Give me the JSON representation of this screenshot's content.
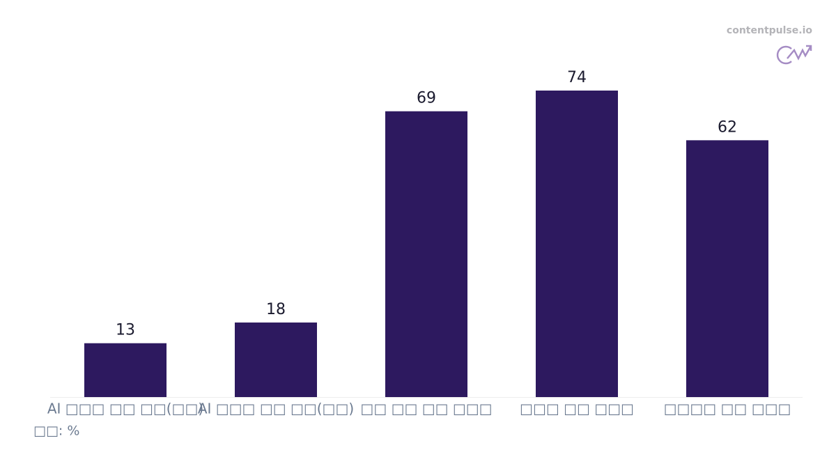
{
  "chart_data": {
    "type": "bar",
    "categories": [
      "AI □□□ □□ □□(□□)",
      "AI □□□ □□ □□(□□)",
      "□□ □□ □□ □□□",
      "□□□ □□ □□□",
      "□□□□ □□ □□□"
    ],
    "values": [
      13,
      18,
      69,
      74,
      62
    ],
    "color": "#2d195f",
    "unit_label": "□□: %",
    "watermark": "contentpulse.io"
  }
}
